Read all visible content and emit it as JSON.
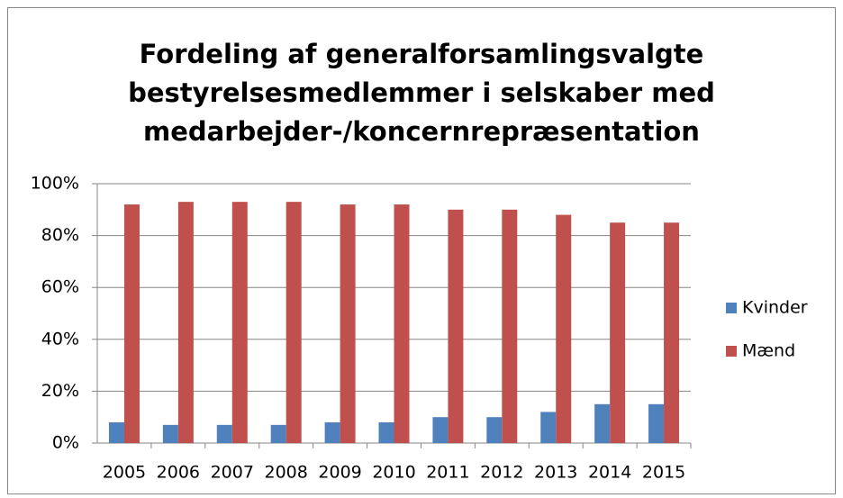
{
  "chart_data": {
    "type": "bar",
    "title": [
      "Fordeling af generalforsamlingsvalgte",
      "bestyrelsesmedlemmer i selskaber med",
      "medarbejder-/koncernrepræsentation"
    ],
    "categories": [
      "2005",
      "2006",
      "2007",
      "2008",
      "2009",
      "2010",
      "2011",
      "2012",
      "2013",
      "2014",
      "2015"
    ],
    "series": [
      {
        "name": "Kvinder",
        "color": "#4f81bd",
        "values": [
          8,
          7,
          7,
          7,
          8,
          8,
          10,
          10,
          12,
          15,
          15
        ]
      },
      {
        "name": "Mænd",
        "color": "#c0504d",
        "values": [
          92,
          93,
          93,
          93,
          92,
          92,
          90,
          90,
          88,
          85,
          85
        ]
      }
    ],
    "ylim": [
      0,
      100
    ],
    "yticks": [
      {
        "value": 0,
        "label": "0%"
      },
      {
        "value": 20,
        "label": "20%"
      },
      {
        "value": 40,
        "label": "40%"
      },
      {
        "value": 60,
        "label": "60%"
      },
      {
        "value": 80,
        "label": "80%"
      },
      {
        "value": 100,
        "label": "100%"
      }
    ],
    "grid": true,
    "legend": "right"
  }
}
